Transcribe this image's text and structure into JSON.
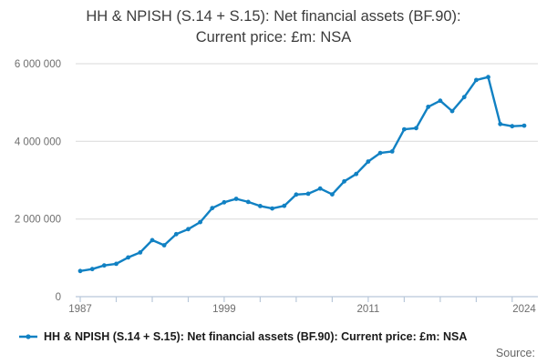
{
  "title": {
    "line1": "HH & NPISH (S.14 + S.15): Net financial assets (BF.90):",
    "line2": "Current price: £m: NSA"
  },
  "legend": {
    "label": "HH & NPISH (S.14 + S.15): Net financial assets (BF.90): Current price: £m: NSA"
  },
  "source_label": "Source:",
  "colors": {
    "line": "#1181c3",
    "grid": "#d9d9d9",
    "axis": "#b9c8da",
    "tick_text": "#6e6e6e",
    "title_text": "#3c3c3c"
  },
  "chart_data": {
    "type": "line",
    "title": "HH & NPISH (S.14 + S.15): Net financial assets (BF.90): Current price: £m: NSA",
    "xlabel": "",
    "ylabel": "",
    "x": [
      1987,
      1988,
      1989,
      1990,
      1991,
      1992,
      1993,
      1994,
      1995,
      1996,
      1997,
      1998,
      1999,
      2000,
      2001,
      2002,
      2003,
      2004,
      2005,
      2006,
      2007,
      2008,
      2009,
      2010,
      2011,
      2012,
      2013,
      2014,
      2015,
      2016,
      2017,
      2018,
      2019,
      2020,
      2021,
      2022,
      2023,
      2024
    ],
    "series": [
      {
        "name": "HH & NPISH (S.14 + S.15): Net financial assets (BF.90): Current price: £m: NSA",
        "values": [
          660000,
          710000,
          805000,
          845000,
          1010000,
          1140000,
          1455000,
          1325000,
          1610000,
          1740000,
          1920000,
          2280000,
          2430000,
          2520000,
          2440000,
          2335000,
          2270000,
          2340000,
          2630000,
          2650000,
          2785000,
          2635000,
          2970000,
          3160000,
          3480000,
          3700000,
          3740000,
          4310000,
          4340000,
          4890000,
          5045000,
          4780000,
          5140000,
          5580000,
          5655000,
          4445000,
          4390000,
          4405000
        ]
      }
    ],
    "xlim": [
      1987,
      2024
    ],
    "ylim": [
      0,
      6000000
    ],
    "y_ticks": [
      0,
      2000000,
      4000000,
      6000000
    ],
    "y_tick_labels": [
      "0",
      "2 000 000",
      "4 000 000",
      "6 000 000"
    ],
    "x_tick_labels": [
      "1987",
      "1999",
      "2011",
      "2024"
    ],
    "x_minor_tick_step": 3,
    "grid": "horizontal",
    "marker": "dot",
    "legend_position": "bottom-left"
  }
}
